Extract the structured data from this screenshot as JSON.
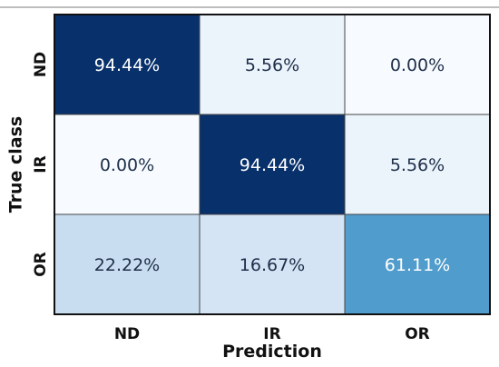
{
  "chart_data": {
    "type": "heatmap",
    "xlabel": "Prediction",
    "ylabel": "True class",
    "x_categories": [
      "ND",
      "IR",
      "OR"
    ],
    "y_categories": [
      "ND",
      "IR",
      "OR"
    ],
    "values": [
      [
        94.44,
        5.56,
        0.0
      ],
      [
        0.0,
        94.44,
        5.56
      ],
      [
        22.22,
        16.67,
        61.11
      ]
    ],
    "labels": [
      [
        "94.44%",
        "5.56%",
        "0.00%"
      ],
      [
        "0.00%",
        "94.44%",
        "5.56%"
      ],
      [
        "22.22%",
        "16.67%",
        "61.11%"
      ]
    ],
    "colorscale": "Blues",
    "grid": true
  }
}
